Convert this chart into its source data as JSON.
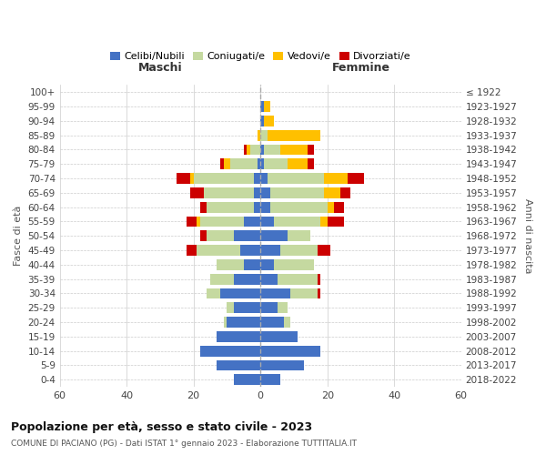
{
  "age_groups": [
    "0-4",
    "5-9",
    "10-14",
    "15-19",
    "20-24",
    "25-29",
    "30-34",
    "35-39",
    "40-44",
    "45-49",
    "50-54",
    "55-59",
    "60-64",
    "65-69",
    "70-74",
    "75-79",
    "80-84",
    "85-89",
    "90-94",
    "95-99",
    "100+"
  ],
  "birth_years": [
    "2018-2022",
    "2013-2017",
    "2008-2012",
    "2003-2007",
    "1998-2002",
    "1993-1997",
    "1988-1992",
    "1983-1987",
    "1978-1982",
    "1973-1977",
    "1968-1972",
    "1963-1967",
    "1958-1962",
    "1953-1957",
    "1948-1952",
    "1943-1947",
    "1938-1942",
    "1933-1937",
    "1928-1932",
    "1923-1927",
    "≤ 1922"
  ],
  "maschi": {
    "celibi": [
      8,
      13,
      18,
      13,
      10,
      8,
      12,
      8,
      5,
      6,
      8,
      5,
      2,
      2,
      2,
      1,
      0,
      0,
      0,
      0,
      0
    ],
    "coniugati": [
      0,
      0,
      0,
      0,
      1,
      2,
      4,
      7,
      8,
      13,
      8,
      13,
      14,
      15,
      18,
      8,
      3,
      0,
      0,
      0,
      0
    ],
    "vedovi": [
      0,
      0,
      0,
      0,
      0,
      0,
      0,
      0,
      0,
      0,
      0,
      1,
      0,
      0,
      1,
      2,
      1,
      1,
      0,
      0,
      0
    ],
    "divorziati": [
      0,
      0,
      0,
      0,
      0,
      0,
      0,
      0,
      0,
      3,
      2,
      3,
      2,
      4,
      4,
      1,
      1,
      0,
      0,
      0,
      0
    ]
  },
  "femmine": {
    "nubili": [
      6,
      13,
      18,
      11,
      7,
      5,
      9,
      5,
      4,
      6,
      8,
      4,
      3,
      3,
      2,
      1,
      1,
      0,
      1,
      1,
      0
    ],
    "coniugate": [
      0,
      0,
      0,
      0,
      2,
      3,
      8,
      12,
      12,
      11,
      7,
      14,
      17,
      16,
      17,
      7,
      5,
      2,
      0,
      0,
      0
    ],
    "vedove": [
      0,
      0,
      0,
      0,
      0,
      0,
      0,
      0,
      0,
      0,
      0,
      2,
      2,
      5,
      7,
      6,
      8,
      16,
      3,
      2,
      0
    ],
    "divorziate": [
      0,
      0,
      0,
      0,
      0,
      0,
      1,
      1,
      0,
      4,
      0,
      5,
      3,
      3,
      5,
      2,
      2,
      0,
      0,
      0,
      0
    ]
  },
  "colors": {
    "celibi": "#4472C4",
    "coniugati": "#c5d9a0",
    "vedovi": "#ffc000",
    "divorziati": "#cc0000"
  },
  "title": "Popolazione per età, sesso e stato civile - 2023",
  "subtitle": "COMUNE DI PACIANO (PG) - Dati ISTAT 1° gennaio 2023 - Elaborazione TUTTITALIA.IT",
  "ylabel_left": "Fasce di età",
  "ylabel_right": "Anni di nascita",
  "xlim": 60,
  "legend_labels": [
    "Celibi/Nubili",
    "Coniugati/e",
    "Vedovi/e",
    "Divorziati/e"
  ],
  "maschi_label": "Maschi",
  "femmine_label": "Femmine",
  "background_color": "#ffffff",
  "grid_color": "#cccccc"
}
